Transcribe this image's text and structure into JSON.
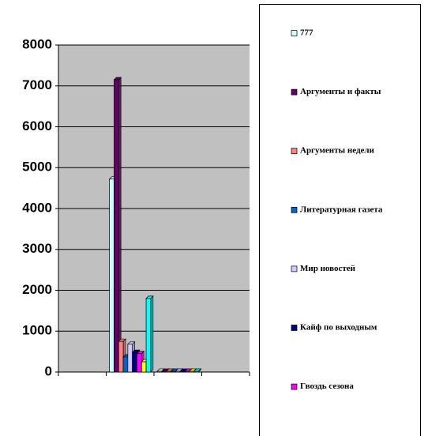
{
  "chart_data": {
    "type": "bar",
    "categories": [
      null,
      null,
      null,
      null
    ],
    "ylim": [
      0,
      8000
    ],
    "yticks": [
      0,
      1000,
      2000,
      3000,
      4000,
      5000,
      6000,
      7000,
      8000
    ],
    "grid": true,
    "series": [
      {
        "name": "777",
        "color": "#ccffff",
        "values": [
          null,
          4720,
          20,
          null
        ]
      },
      {
        "name": "Аргументы и факты",
        "color": "#660066",
        "values": [
          null,
          7150,
          20,
          null
        ]
      },
      {
        "name": "Аргументы недели",
        "color": "#ff8080",
        "values": [
          null,
          750,
          20,
          null
        ]
      },
      {
        "name": "Литературная газета",
        "color": "#0066cc",
        "values": [
          null,
          370,
          20,
          null
        ]
      },
      {
        "name": "Мир новостей",
        "color": "#ccccff",
        "values": [
          null,
          680,
          20,
          null
        ]
      },
      {
        "name": "Кайф по выходным",
        "color": "#000080",
        "values": [
          null,
          480,
          20,
          null
        ]
      },
      {
        "name": "Гвоздь сезона",
        "color": "#ff00ff",
        "values": [
          null,
          450,
          20,
          null
        ]
      },
      {
        "color": "#ffff00",
        "values": [
          null,
          250,
          20,
          null
        ]
      },
      {
        "color": "#00ffff",
        "values": [
          null,
          1800,
          20,
          null
        ]
      }
    ]
  }
}
